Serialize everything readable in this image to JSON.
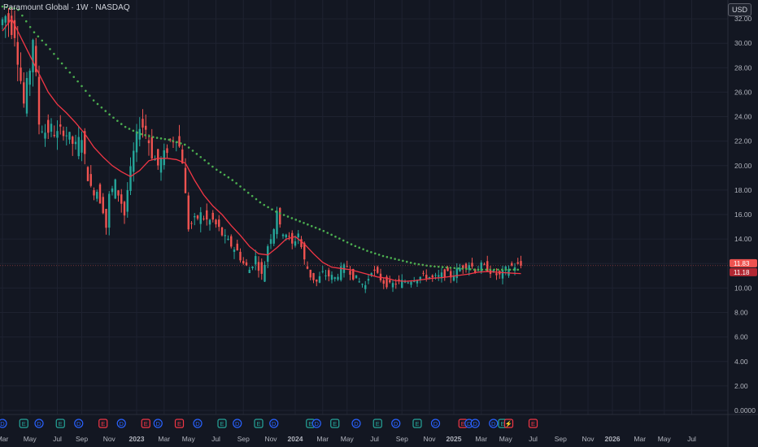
{
  "header": {
    "legend": "Paramount Global · 1W · NASDAQ",
    "currency": "USD"
  },
  "price_labels": {
    "last_price": "11.83",
    "ma_value": "11.18"
  },
  "colors": {
    "background": "#131722",
    "grid": "#1e2230",
    "up_candle": "#26a69a",
    "down_candle": "#ef5350",
    "ma_line": "#f23645",
    "dot_ma": "#4caf50",
    "axis_text": "#b2b5be",
    "event_earnings": "#26a69a",
    "event_dividend": "#2962ff",
    "event_split": "#f23645"
  },
  "chart_data": {
    "type": "candlestick",
    "title": "Paramount Global",
    "interval": "1W",
    "exchange": "NASDAQ",
    "y_axis": {
      "range": [
        0,
        33.2
      ],
      "ticks": [
        "0.0000",
        "2.00",
        "4.00",
        "6.00",
        "8.00",
        "10.00",
        "12.00",
        "14.00",
        "16.00",
        "18.00",
        "20.00",
        "22.00",
        "24.00",
        "26.00",
        "28.00",
        "30.00",
        "32.00"
      ],
      "tick_values": [
        0,
        2,
        4,
        6,
        8,
        10,
        12,
        14,
        16,
        18,
        20,
        22,
        24,
        26,
        28,
        30,
        32
      ]
    },
    "x_axis": {
      "labels": [
        "Mar",
        "May",
        "Jul",
        "Sep",
        "Nov",
        "2023",
        "Mar",
        "May",
        "Jul",
        "Sep",
        "Nov",
        "2024",
        "Mar",
        "May",
        "Jul",
        "Sep",
        "Nov",
        "2025",
        "Mar",
        "May",
        "Jul",
        "Sep",
        "Nov",
        "2026",
        "Mar",
        "May",
        "Jul"
      ],
      "label_weeks": [
        0,
        9,
        18,
        26,
        35,
        44,
        53,
        61,
        70,
        79,
        88,
        96,
        105,
        113,
        122,
        131,
        140,
        148,
        157,
        165,
        174,
        183,
        192,
        200,
        209,
        217,
        226
      ]
    },
    "price_points": [
      [
        0,
        31.5
      ],
      [
        2,
        32.2
      ],
      [
        5,
        31.0
      ],
      [
        7,
        27.0
      ],
      [
        8,
        25.0
      ],
      [
        10,
        28.0
      ],
      [
        11,
        30.5
      ],
      [
        13,
        23.5
      ],
      [
        15,
        22.8
      ],
      [
        17,
        23.0
      ],
      [
        19,
        22.5
      ],
      [
        21,
        23.0
      ],
      [
        23,
        22.2
      ],
      [
        25,
        21.5
      ],
      [
        27,
        22.5
      ],
      [
        28,
        20.5
      ],
      [
        30,
        18.0
      ],
      [
        32,
        18.0
      ],
      [
        34,
        16.5
      ],
      [
        35,
        15.0
      ],
      [
        36,
        17.5
      ],
      [
        38,
        18.5
      ],
      [
        40,
        17.0
      ],
      [
        41,
        16.0
      ],
      [
        42,
        18.0
      ],
      [
        44,
        21.0
      ],
      [
        46,
        23.5
      ],
      [
        48,
        23.0
      ],
      [
        50,
        21.0
      ],
      [
        52,
        20.0
      ],
      [
        54,
        20.8
      ],
      [
        56,
        22.0
      ],
      [
        58,
        22.5
      ],
      [
        60,
        20.5
      ],
      [
        61,
        17.5
      ],
      [
        62,
        15.0
      ],
      [
        64,
        15.5
      ],
      [
        66,
        16.0
      ],
      [
        68,
        15.5
      ],
      [
        70,
        15.5
      ],
      [
        72,
        14.8
      ],
      [
        74,
        14.0
      ],
      [
        76,
        13.5
      ],
      [
        78,
        13.0
      ],
      [
        80,
        12.0
      ],
      [
        82,
        11.5
      ],
      [
        84,
        12.5
      ],
      [
        86,
        11.0
      ],
      [
        87,
        12.0
      ],
      [
        88,
        13.5
      ],
      [
        90,
        15.0
      ],
      [
        91,
        16.5
      ],
      [
        92,
        14.8
      ],
      [
        94,
        14.5
      ],
      [
        96,
        13.5
      ],
      [
        98,
        14.5
      ],
      [
        100,
        12.2
      ],
      [
        102,
        11.0
      ],
      [
        104,
        10.5
      ],
      [
        106,
        11.2
      ],
      [
        108,
        11.0
      ],
      [
        110,
        10.8
      ],
      [
        112,
        11.5
      ],
      [
        114,
        11.8
      ],
      [
        116,
        11.0
      ],
      [
        118,
        10.5
      ],
      [
        120,
        10.2
      ],
      [
        122,
        11.5
      ],
      [
        124,
        11.0
      ],
      [
        126,
        10.5
      ],
      [
        128,
        10.2
      ],
      [
        130,
        10.4
      ],
      [
        132,
        10.5
      ],
      [
        134,
        10.6
      ],
      [
        136,
        10.8
      ],
      [
        138,
        10.9
      ],
      [
        140,
        11.0
      ],
      [
        142,
        10.8
      ],
      [
        144,
        10.9
      ],
      [
        146,
        11.2
      ],
      [
        148,
        11.0
      ],
      [
        150,
        11.4
      ],
      [
        152,
        11.8
      ],
      [
        154,
        12.0
      ],
      [
        156,
        11.5
      ],
      [
        158,
        11.8
      ],
      [
        160,
        11.6
      ],
      [
        162,
        11.2
      ],
      [
        164,
        11.0
      ],
      [
        166,
        11.5
      ],
      [
        168,
        11.8
      ],
      [
        170,
        11.83
      ]
    ],
    "ma_points": [
      [
        0,
        31.0
      ],
      [
        3,
        32.0
      ],
      [
        6,
        30.5
      ],
      [
        9,
        29.0
      ],
      [
        12,
        27.5
      ],
      [
        15,
        26.0
      ],
      [
        18,
        25.0
      ],
      [
        21,
        24.3
      ],
      [
        24,
        23.5
      ],
      [
        27,
        22.6
      ],
      [
        30,
        21.5
      ],
      [
        33,
        20.7
      ],
      [
        36,
        20.0
      ],
      [
        39,
        19.5
      ],
      [
        42,
        19.1
      ],
      [
        45,
        19.6
      ],
      [
        48,
        20.4
      ],
      [
        51,
        20.6
      ],
      [
        54,
        20.6
      ],
      [
        57,
        20.5
      ],
      [
        60,
        20.2
      ],
      [
        63,
        18.8
      ],
      [
        66,
        17.6
      ],
      [
        69,
        16.7
      ],
      [
        72,
        16.0
      ],
      [
        75,
        15.1
      ],
      [
        78,
        14.3
      ],
      [
        81,
        13.4
      ],
      [
        84,
        12.8
      ],
      [
        87,
        12.7
      ],
      [
        90,
        13.3
      ],
      [
        93,
        14.0
      ],
      [
        96,
        14.2
      ],
      [
        99,
        13.6
      ],
      [
        102,
        12.8
      ],
      [
        105,
        12.1
      ],
      [
        108,
        11.7
      ],
      [
        111,
        11.6
      ],
      [
        114,
        11.5
      ],
      [
        117,
        11.3
      ],
      [
        120,
        11.1
      ],
      [
        123,
        10.9
      ],
      [
        126,
        10.8
      ],
      [
        129,
        10.6
      ],
      [
        132,
        10.55
      ],
      [
        135,
        10.6
      ],
      [
        138,
        10.7
      ],
      [
        141,
        10.8
      ],
      [
        144,
        10.85
      ],
      [
        147,
        10.95
      ],
      [
        150,
        11.05
      ],
      [
        153,
        11.15
      ],
      [
        156,
        11.3
      ],
      [
        159,
        11.35
      ],
      [
        162,
        11.3
      ],
      [
        165,
        11.25
      ],
      [
        168,
        11.2
      ],
      [
        170,
        11.18
      ]
    ],
    "dot_ma_points": [
      [
        0,
        33.0
      ],
      [
        5,
        32.8
      ],
      [
        10,
        31.0
      ],
      [
        15,
        29.7
      ],
      [
        20,
        28.2
      ],
      [
        25,
        26.8
      ],
      [
        30,
        25.3
      ],
      [
        35,
        24.2
      ],
      [
        40,
        23.2
      ],
      [
        45,
        22.6
      ],
      [
        50,
        22.3
      ],
      [
        55,
        22.1
      ],
      [
        60,
        21.7
      ],
      [
        65,
        20.7
      ],
      [
        70,
        19.7
      ],
      [
        75,
        18.9
      ],
      [
        80,
        17.9
      ],
      [
        85,
        16.9
      ],
      [
        90,
        16.2
      ],
      [
        95,
        15.7
      ],
      [
        100,
        15.2
      ],
      [
        105,
        14.7
      ],
      [
        110,
        14.1
      ],
      [
        115,
        13.5
      ],
      [
        120,
        13.0
      ],
      [
        125,
        12.6
      ],
      [
        130,
        12.3
      ],
      [
        135,
        12.0
      ],
      [
        140,
        11.8
      ],
      [
        145,
        11.7
      ],
      [
        150,
        11.6
      ],
      [
        155,
        11.5
      ],
      [
        160,
        11.5
      ],
      [
        165,
        11.5
      ],
      [
        170,
        11.5
      ]
    ],
    "candle_count": 170,
    "events": [
      {
        "week": 0,
        "type": "D"
      },
      {
        "week": 7,
        "type": "E"
      },
      {
        "week": 12,
        "type": "D"
      },
      {
        "week": 19,
        "type": "E"
      },
      {
        "week": 25,
        "type": "D"
      },
      {
        "week": 33,
        "type": "E"
      },
      {
        "week": 39,
        "type": "D"
      },
      {
        "week": 47,
        "type": "E"
      },
      {
        "week": 51,
        "type": "D"
      },
      {
        "week": 58,
        "type": "E"
      },
      {
        "week": 64,
        "type": "D"
      },
      {
        "week": 72,
        "type": "E"
      },
      {
        "week": 77,
        "type": "D"
      },
      {
        "week": 84,
        "type": "E"
      },
      {
        "week": 89,
        "type": "D"
      },
      {
        "week": 101,
        "type": "E"
      },
      {
        "week": 103,
        "type": "D"
      },
      {
        "week": 109,
        "type": "E"
      },
      {
        "week": 116,
        "type": "D"
      },
      {
        "week": 123,
        "type": "E"
      },
      {
        "week": 129,
        "type": "D"
      },
      {
        "week": 136,
        "type": "E"
      },
      {
        "week": 142,
        "type": "D"
      },
      {
        "week": 151,
        "type": "E"
      },
      {
        "week": 153,
        "type": "D"
      },
      {
        "week": 155,
        "type": "D"
      },
      {
        "week": 161,
        "type": "D"
      },
      {
        "week": 164,
        "type": "E"
      },
      {
        "week": 166,
        "type": "S"
      },
      {
        "week": 174,
        "type": "E"
      }
    ]
  }
}
